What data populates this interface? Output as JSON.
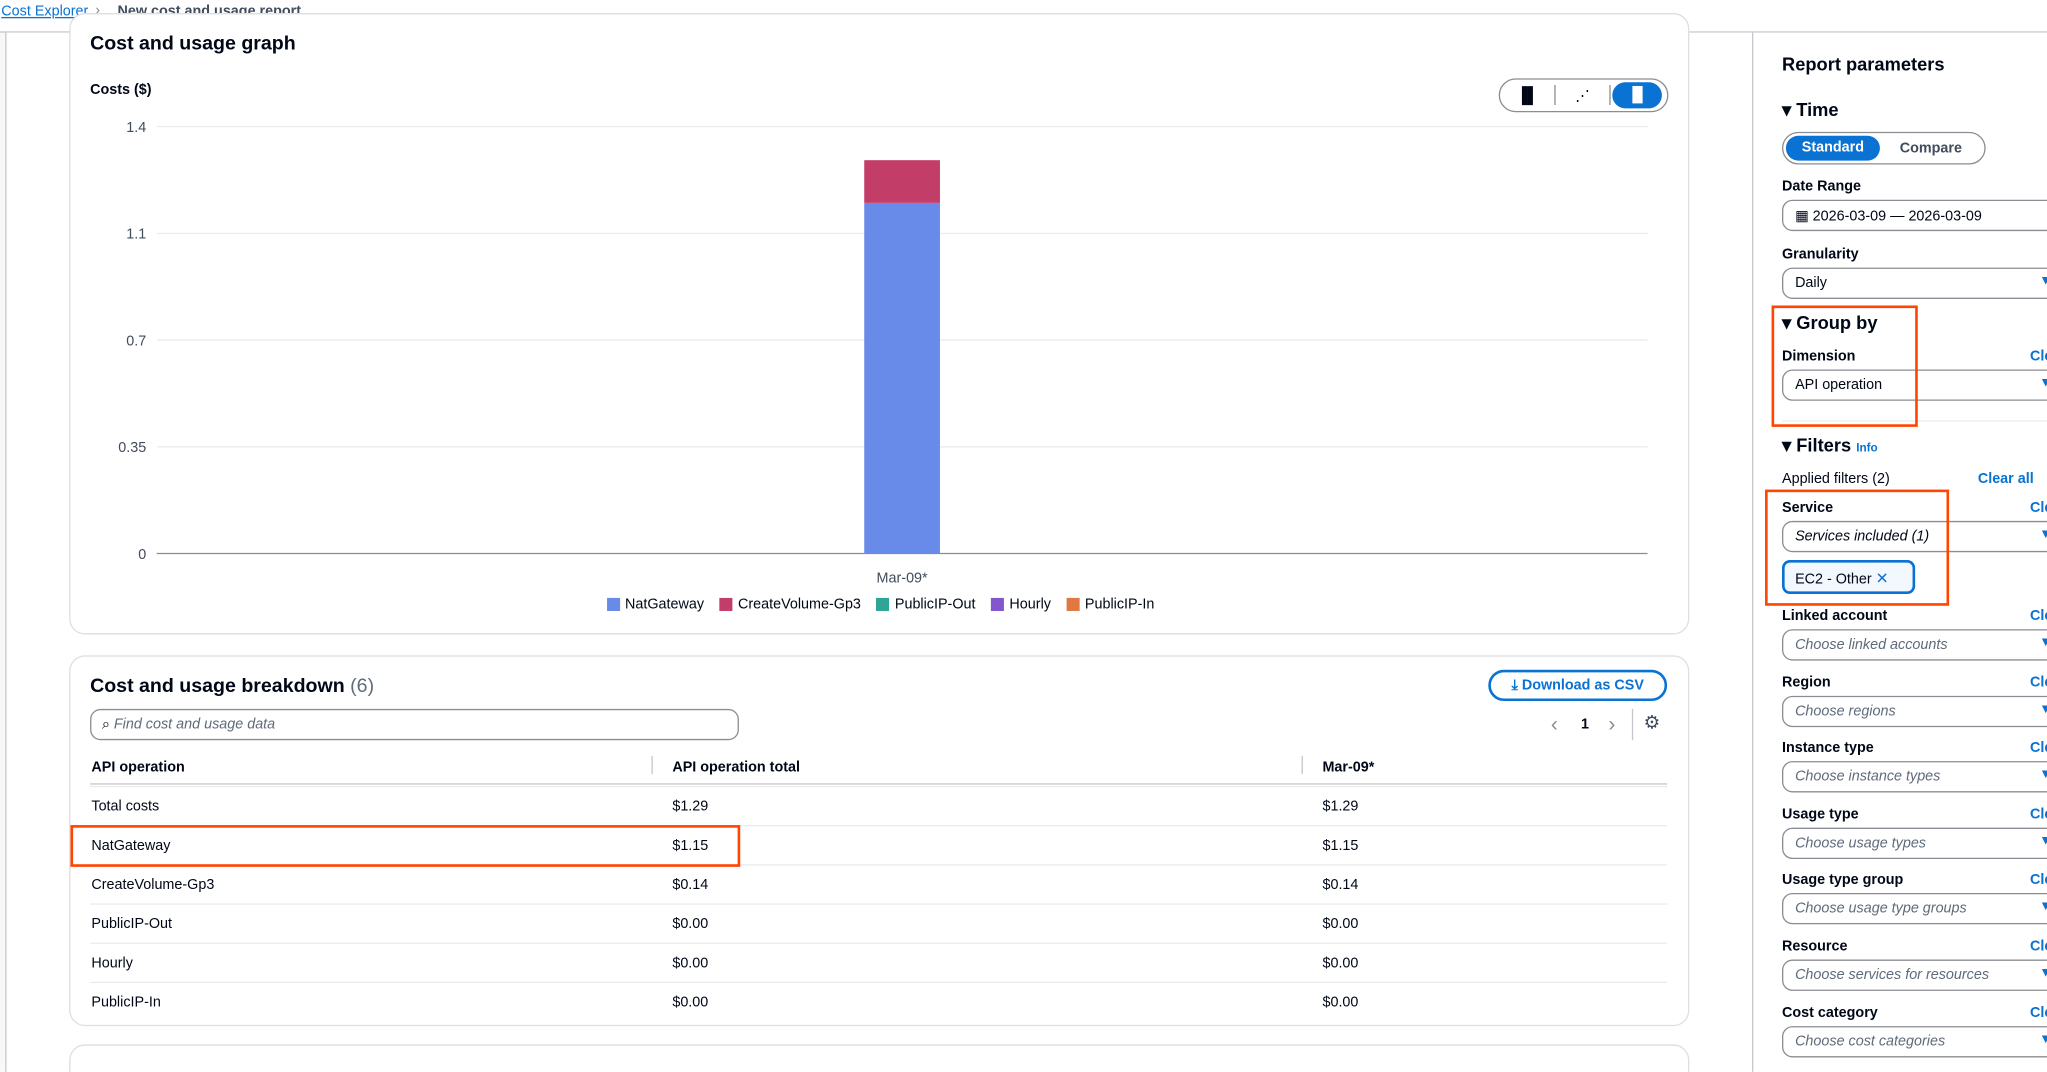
{
  "breadcrumb": {
    "root": "Cost Explorer",
    "current": "New cost and usage report"
  },
  "graph": {
    "title": "Cost and usage graph",
    "chart_types": [
      {
        "icon": "bar-chart-icon",
        "active": false
      },
      {
        "icon": "line-chart-icon",
        "active": false
      },
      {
        "icon": "stacked-bar-chart-icon",
        "active": true
      }
    ],
    "chart_data": {
      "type": "bar",
      "stacked": true,
      "ylabel": "Costs ($)",
      "ylim": [
        0,
        1.4
      ],
      "y_tick_labels": [
        "0",
        "0.35",
        "0.7",
        "1.1",
        "1.4"
      ],
      "categories": [
        "Mar-09*"
      ],
      "series": [
        {
          "name": "NatGateway",
          "values": [
            1.15
          ],
          "color": "#688ae8"
        },
        {
          "name": "CreateVolume-Gp3",
          "values": [
            0.14
          ],
          "color": "#c33d69"
        },
        {
          "name": "PublicIP-Out",
          "values": [
            0.0
          ],
          "color": "#2ea597"
        },
        {
          "name": "Hourly",
          "values": [
            0.0
          ],
          "color": "#8456ce"
        },
        {
          "name": "PublicIP-In",
          "values": [
            0.0
          ],
          "color": "#e07941"
        }
      ],
      "grid": true,
      "legend": "bottom"
    }
  },
  "breakdown": {
    "title": "Cost and usage breakdown",
    "count": "(6)",
    "download": "Download as CSV",
    "search_placeholder": "Find cost and usage data",
    "page": "1",
    "columns": [
      "API operation",
      "API operation total",
      "Mar-09*"
    ],
    "rows": [
      [
        "Total costs",
        "$1.29",
        "$1.29"
      ],
      [
        "NatGateway",
        "$1.15",
        "$1.15"
      ],
      [
        "CreateVolume-Gp3",
        "$0.14",
        "$0.14"
      ],
      [
        "PublicIP-Out",
        "$0.00",
        "$0.00"
      ],
      [
        "Hourly",
        "$0.00",
        "$0.00"
      ],
      [
        "PublicIP-In",
        "$0.00",
        "$0.00"
      ]
    ]
  },
  "params": {
    "title": "Report parameters",
    "time": {
      "label": "Time",
      "standard": "Standard",
      "compare": "Compare",
      "date_range_label": "Date Range",
      "date_range": "2026-03-09 — 2026-03-09",
      "granularity_label": "Granularity",
      "granularity": "Daily"
    },
    "group_by": {
      "label": "Group by",
      "dimension_label": "Dimension",
      "dimension": "API operation",
      "clear": "Cle"
    },
    "filters": {
      "label": "Filters",
      "info": "Info",
      "applied": "Applied filters (2)",
      "clear_all": "Clear all",
      "service_label": "Service",
      "service_value": "Services included (1)",
      "token": "EC2 - Other",
      "items": [
        {
          "label": "Linked account",
          "placeholder": "Choose linked accounts"
        },
        {
          "label": "Region",
          "placeholder": "Choose regions"
        },
        {
          "label": "Instance type",
          "placeholder": "Choose instance types"
        },
        {
          "label": "Usage type",
          "placeholder": "Choose usage types"
        },
        {
          "label": "Usage type group",
          "placeholder": "Choose usage type groups"
        },
        {
          "label": "Resource",
          "placeholder": "Choose services for resources"
        },
        {
          "label": "Cost category",
          "placeholder": "Choose cost categories"
        }
      ]
    }
  }
}
